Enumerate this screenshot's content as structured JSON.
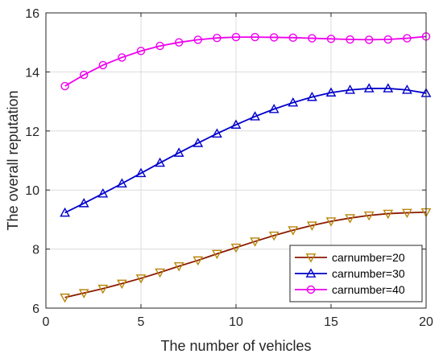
{
  "chart_data": {
    "type": "line",
    "title": "",
    "xlabel": "The number of vehicles",
    "ylabel": "The overall reputation",
    "xlim": [
      0,
      20
    ],
    "ylim": [
      6,
      16
    ],
    "xticks": [
      "0",
      "5",
      "10",
      "15",
      "20"
    ],
    "yticks": [
      "6",
      "8",
      "10",
      "12",
      "14",
      "16"
    ],
    "grid": true,
    "legend_position": "bottom-right",
    "x": [
      1,
      2,
      3,
      4,
      5,
      6,
      7,
      8,
      9,
      10,
      11,
      12,
      13,
      14,
      15,
      16,
      17,
      18,
      19,
      20
    ],
    "series": [
      {
        "name": "carnumber=20",
        "color": "#8b1a00",
        "marker": "triangle-down",
        "marker_color": "#b8860b",
        "values": [
          6.36,
          6.51,
          6.66,
          6.83,
          7.01,
          7.21,
          7.42,
          7.62,
          7.84,
          8.05,
          8.26,
          8.46,
          8.64,
          8.8,
          8.94,
          9.05,
          9.14,
          9.2,
          9.23,
          9.25
        ]
      },
      {
        "name": "carnumber=30",
        "color": "#0000cc",
        "marker": "triangle-up",
        "marker_color": "#0000cc",
        "values": [
          9.23,
          9.55,
          9.88,
          10.22,
          10.57,
          10.92,
          11.26,
          11.59,
          11.91,
          12.21,
          12.49,
          12.74,
          12.96,
          13.15,
          13.3,
          13.39,
          13.44,
          13.44,
          13.39,
          13.28
        ]
      },
      {
        "name": "carnumber=40",
        "color": "#ee00ee",
        "marker": "circle",
        "marker_color": "#ee00ee",
        "values": [
          13.52,
          13.9,
          14.23,
          14.49,
          14.71,
          14.88,
          15.0,
          15.09,
          15.15,
          15.18,
          15.18,
          15.17,
          15.16,
          15.14,
          15.12,
          15.1,
          15.09,
          15.1,
          15.14,
          15.2
        ]
      }
    ]
  }
}
